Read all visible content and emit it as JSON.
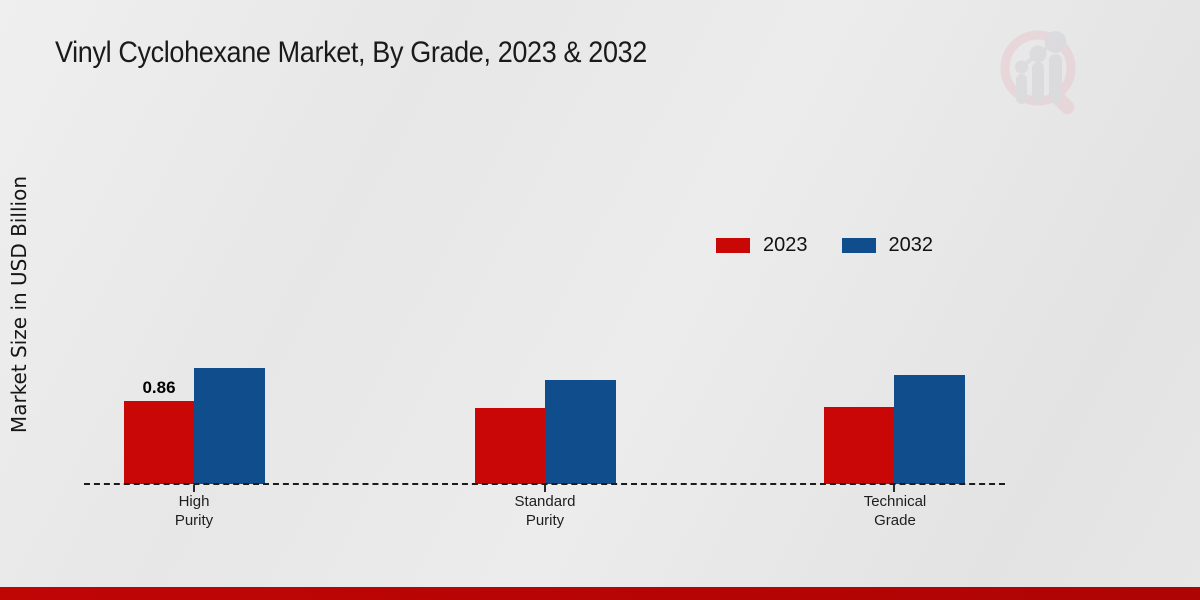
{
  "page": {
    "title": "Vinyl Cyclohexane Market, By Grade, 2023 & 2032",
    "background_color": "#e8e8e8",
    "footer_color": "#c00505"
  },
  "legend": {
    "items": [
      {
        "label": "2023",
        "color": "#c90707"
      },
      {
        "label": "2032",
        "color": "#0f4d8c"
      }
    ]
  },
  "chart_data": {
    "type": "bar",
    "title": "Vinyl Cyclohexane Market, By Grade, 2023 & 2032",
    "ylabel": "Market Size in USD Billion",
    "xlabel": "",
    "categories": [
      "High Purity",
      "Standard Purity",
      "Technical Grade"
    ],
    "categories_lines": [
      [
        "High",
        "Purity"
      ],
      [
        "Standard",
        "Purity"
      ],
      [
        "Technical",
        "Grade"
      ]
    ],
    "series": [
      {
        "name": "2023",
        "color": "#c90707",
        "values": [
          0.86,
          0.79,
          0.8
        ]
      },
      {
        "name": "2032",
        "color": "#0f4d8c",
        "values": [
          1.2,
          1.08,
          1.13
        ]
      }
    ],
    "bar_labels": [
      {
        "group": 0,
        "series": 0,
        "text": "0.86"
      }
    ],
    "ylim": [
      0,
      1.25
    ],
    "grid": false,
    "legend_position": "upper-right",
    "baseline_style": "dashed",
    "y_axis_ticks_visible": false
  },
  "logo": {
    "description": "magnifying-glass-bar-chart-watermark"
  }
}
